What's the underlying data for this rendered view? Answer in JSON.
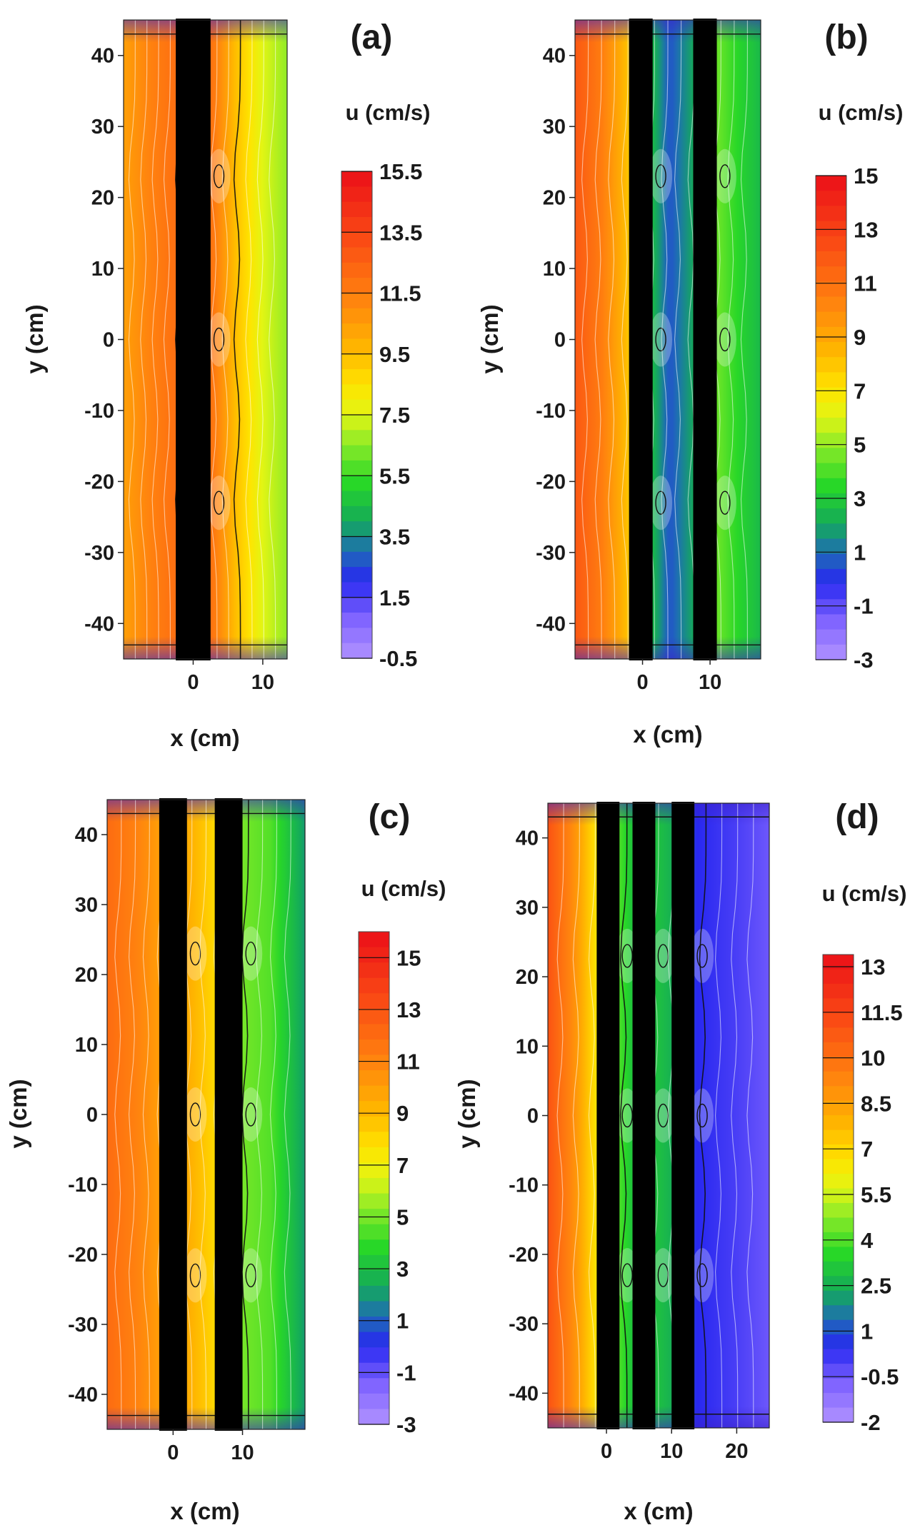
{
  "figure": {
    "panels": [
      {
        "label": "(a)",
        "xlabel": "x (cm)",
        "ylabel": "y (cm)",
        "colorbar_title": "u (cm/s)",
        "colorbar_min": -0.5,
        "colorbar_max": 15.5,
        "colorbar_ticks": [
          "15.5",
          "13.5",
          "11.5",
          "9.5",
          "7.5",
          "5.5",
          "3.5",
          "1.5",
          "-0.5"
        ]
      },
      {
        "label": "(b)",
        "xlabel": "x (cm)",
        "ylabel": "y (cm)",
        "colorbar_title": "u (cm/s)",
        "colorbar_min": -3,
        "colorbar_max": 15,
        "colorbar_ticks": [
          "15",
          "13",
          "11",
          "9",
          "7",
          "5",
          "3",
          "1",
          "-1",
          "-3"
        ]
      },
      {
        "label": "(c)",
        "xlabel": "x (cm)",
        "ylabel": "y (cm)",
        "colorbar_title": "u (cm/s)",
        "colorbar_min": -3,
        "colorbar_max": 16,
        "colorbar_ticks": [
          "15",
          "13",
          "11",
          "9",
          "7",
          "5",
          "3",
          "1",
          "-1",
          "-3"
        ]
      },
      {
        "label": "(d)",
        "xlabel": "x (cm)",
        "ylabel": "y (cm)",
        "colorbar_title": "u (cm/s)",
        "colorbar_min": -2,
        "colorbar_max": 13.4,
        "colorbar_ticks": [
          "13",
          "11.5",
          "10",
          "8.5",
          "7",
          "5.5",
          "4",
          "2.5",
          "1",
          "-0.5",
          "-2"
        ]
      }
    ]
  },
  "chart_data": [
    {
      "type": "heatmap",
      "title": "(a)",
      "xlabel": "x (cm)",
      "ylabel": "y (cm)",
      "xlim": [
        -10,
        13.5
      ],
      "ylim": [
        -45,
        45
      ],
      "xticks": [
        0,
        10
      ],
      "yticks": [
        40,
        30,
        20,
        10,
        0,
        -10,
        -20,
        -30,
        -40
      ],
      "obstacles_x": [
        [
          -2.5,
          2.5
        ]
      ],
      "colorbar_label": "u (cm/s)",
      "colorbar_range": [
        -0.5,
        15.5
      ],
      "value_profile": [
        [
          -10,
          10.4
        ],
        [
          -6,
          11.4
        ],
        [
          -2.5,
          12.0
        ],
        [
          2.5,
          12.0
        ],
        [
          6,
          9.5
        ],
        [
          10,
          7.5
        ],
        [
          13.5,
          6.6
        ]
      ],
      "hotspots_y": [
        23,
        0,
        -23
      ]
    },
    {
      "type": "heatmap",
      "title": "(b)",
      "xlabel": "x (cm)",
      "ylabel": "y (cm)",
      "xlim": [
        -10,
        17.5
      ],
      "ylim": [
        -45,
        45
      ],
      "xticks": [
        0,
        10
      ],
      "yticks": [
        40,
        30,
        20,
        10,
        0,
        -10,
        -20,
        -30,
        -40
      ],
      "obstacles_x": [
        [
          -2,
          1.5
        ],
        [
          7.5,
          11
        ]
      ],
      "colorbar_label": "u (cm/s)",
      "colorbar_range": [
        -3,
        15
      ],
      "value_profile": [
        [
          -10,
          12.0
        ],
        [
          -6,
          10.5
        ],
        [
          -2,
          8.0
        ],
        [
          1.5,
          2.5
        ],
        [
          4,
          0.5
        ],
        [
          7.5,
          2.0
        ],
        [
          11,
          4.5
        ],
        [
          14,
          3.5
        ],
        [
          17.5,
          2.5
        ]
      ],
      "hotspots_y": [
        23,
        0,
        -23
      ]
    },
    {
      "type": "heatmap",
      "title": "(c)",
      "xlabel": "x (cm)",
      "ylabel": "y (cm)",
      "xlim": [
        -9.5,
        19
      ],
      "ylim": [
        -45,
        45
      ],
      "xticks": [
        0,
        10
      ],
      "yticks": [
        40,
        30,
        20,
        10,
        0,
        -10,
        -20,
        -30,
        -40
      ],
      "obstacles_x": [
        [
          -2,
          2
        ],
        [
          6,
          10
        ]
      ],
      "colorbar_label": "u (cm/s)",
      "colorbar_range": [
        -3,
        16
      ],
      "value_profile": [
        [
          -9.5,
          12.0
        ],
        [
          -5,
          11.0
        ],
        [
          -2,
          10.0
        ],
        [
          2,
          9.5
        ],
        [
          6,
          8.0
        ],
        [
          10,
          5.0
        ],
        [
          14,
          4.5
        ],
        [
          19,
          2.0
        ]
      ],
      "hotspots_y": [
        23,
        0,
        -23
      ]
    },
    {
      "type": "heatmap",
      "title": "(d)",
      "xlabel": "x (cm)",
      "ylabel": "y (cm)",
      "xlim": [
        -9,
        25
      ],
      "ylim": [
        -45,
        45
      ],
      "xticks": [
        0,
        10,
        20
      ],
      "yticks": [
        40,
        30,
        20,
        10,
        0,
        -10,
        -20,
        -30,
        -40
      ],
      "obstacles_x": [
        [
          -1.5,
          2
        ],
        [
          4,
          7.5
        ],
        [
          10,
          13.5
        ]
      ],
      "colorbar_label": "u (cm/s)",
      "colorbar_range": [
        -2,
        13.4
      ],
      "value_profile": [
        [
          -9,
          11.0
        ],
        [
          -5,
          9.0
        ],
        [
          -1.5,
          6.5
        ],
        [
          2,
          4.0
        ],
        [
          4,
          3.0
        ],
        [
          7.5,
          3.0
        ],
        [
          10,
          2.5
        ],
        [
          13.5,
          0.5
        ],
        [
          20,
          0.0
        ],
        [
          25,
          -0.5
        ]
      ],
      "hotspots_y": [
        23,
        0,
        -23
      ]
    }
  ]
}
